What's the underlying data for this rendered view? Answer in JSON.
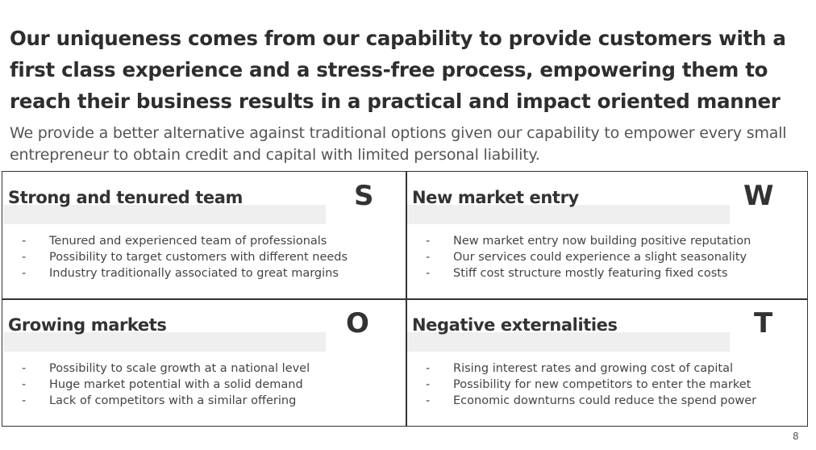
{
  "title": "Our uniqueness comes from our capability to provide customers with a first class experience and a stress-free process, empowering them to reach their business results in a practical and impact oriented manner",
  "subtitle": "We provide a better alternative against traditional options given our capability to empower every small entrepreneur to obtain credit and capital with limited personal liability.",
  "swot": [
    {
      "letter": "S",
      "heading": "Strong and tenured team",
      "items": [
        "Tenured and experienced team of professionals",
        "Possibility to target customers with different needs",
        "Industry traditionally associated to great margins"
      ]
    },
    {
      "letter": "W",
      "heading": "New market entry",
      "items": [
        "New market entry now building positive reputation",
        "Our services could experience a slight seasonality",
        "Stiff cost structure mostly featuring fixed costs"
      ]
    },
    {
      "letter": "O",
      "heading": "Growing markets",
      "items": [
        "Possibility to scale growth at a national level",
        "Huge market potential with a solid demand",
        "Lack of competitors with a similar offering"
      ]
    },
    {
      "letter": "T",
      "heading": "Negative externalities",
      "items": [
        "Rising interest rates and growing cost of capital",
        "Possibility for new competitors to enter the market",
        "Economic downturns could reduce the spend power"
      ]
    }
  ],
  "bullet_marker": "-",
  "page_number": "8"
}
